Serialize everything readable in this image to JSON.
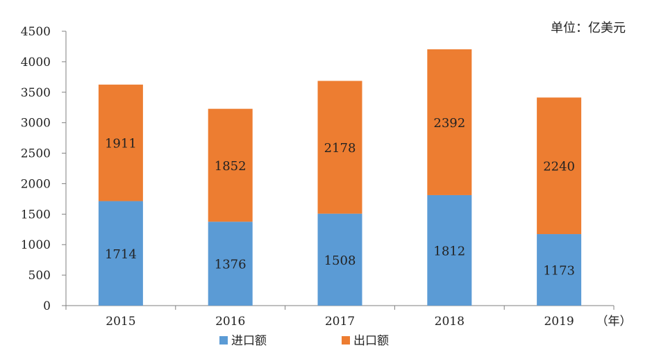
{
  "chart_data": {
    "type": "bar",
    "stacked": true,
    "categories": [
      "2015",
      "2016",
      "2017",
      "2018",
      "2019"
    ],
    "series": [
      {
        "name": "进口额",
        "values": [
          1714,
          1376,
          1508,
          1812,
          1173
        ],
        "color": "#5B9BD5"
      },
      {
        "name": "出口额",
        "values": [
          1911,
          1852,
          2178,
          2392,
          2240
        ],
        "color": "#ED7D31"
      }
    ],
    "title": "",
    "unit_label": "单位：亿美元",
    "xlabel": "（年）",
    "ylabel": "",
    "ylim": [
      0,
      4500
    ],
    "yticks": [
      0,
      500,
      1000,
      1500,
      2000,
      2500,
      3000,
      3500,
      4000,
      4500
    ],
    "grid": false,
    "legend_position": "bottom"
  }
}
